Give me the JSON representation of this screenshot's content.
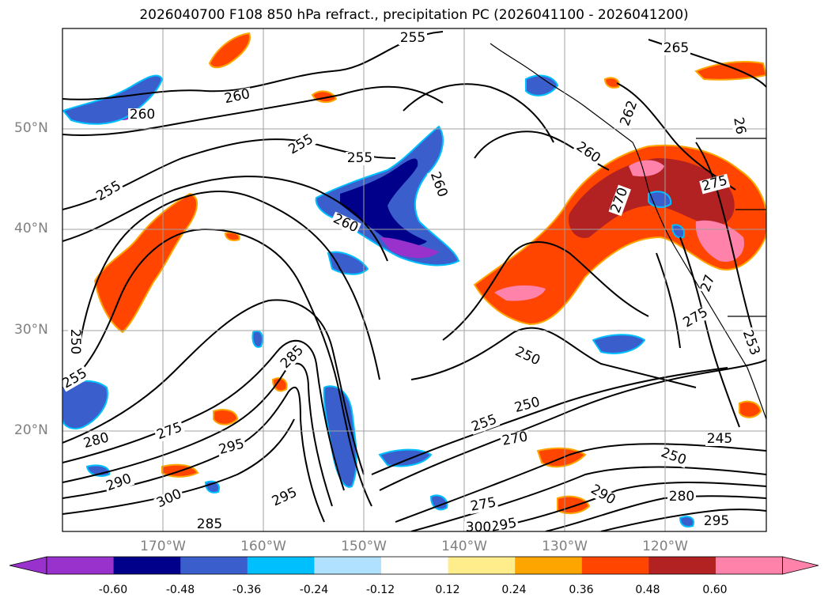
{
  "title": "2026040700 F108 850 hPa refract., precipitation PC (2026041100 - 2026041200)",
  "latitude_labels": [
    "50°N",
    "40°N",
    "30°N",
    "20°N"
  ],
  "longitude_labels": [
    "170°W",
    "160°W",
    "150°W",
    "140°W",
    "130°W",
    "120°W"
  ],
  "contour_labels": [
    "255",
    "265",
    "260",
    "260",
    "255",
    "255",
    "260",
    "262",
    "26",
    "260",
    "255",
    "260",
    "270",
    "275",
    "250",
    "285",
    "250",
    "255",
    "250",
    "255",
    "280",
    "275",
    "295",
    "290",
    "300",
    "295",
    "285",
    "275",
    "295",
    "300",
    "290",
    "280",
    "295",
    "250",
    "245",
    "270",
    "275",
    "253",
    "27"
  ],
  "colorbar": {
    "tick_labels": [
      "-0.60",
      "-0.48",
      "-0.36",
      "-0.24",
      "-0.12",
      "0.12",
      "0.24",
      "0.36",
      "0.48",
      "0.60"
    ],
    "colors": [
      "#9932cc",
      "#00008b",
      "#3a5fcd",
      "#00bfff",
      "#b0e2ff",
      "#ffffff",
      "#ffec8b",
      "#ffa500",
      "#ff4500",
      "#b22222",
      "#ff82ab"
    ]
  },
  "map_colors": {
    "land_line": "#000000",
    "grid": "#a0a0a0"
  }
}
